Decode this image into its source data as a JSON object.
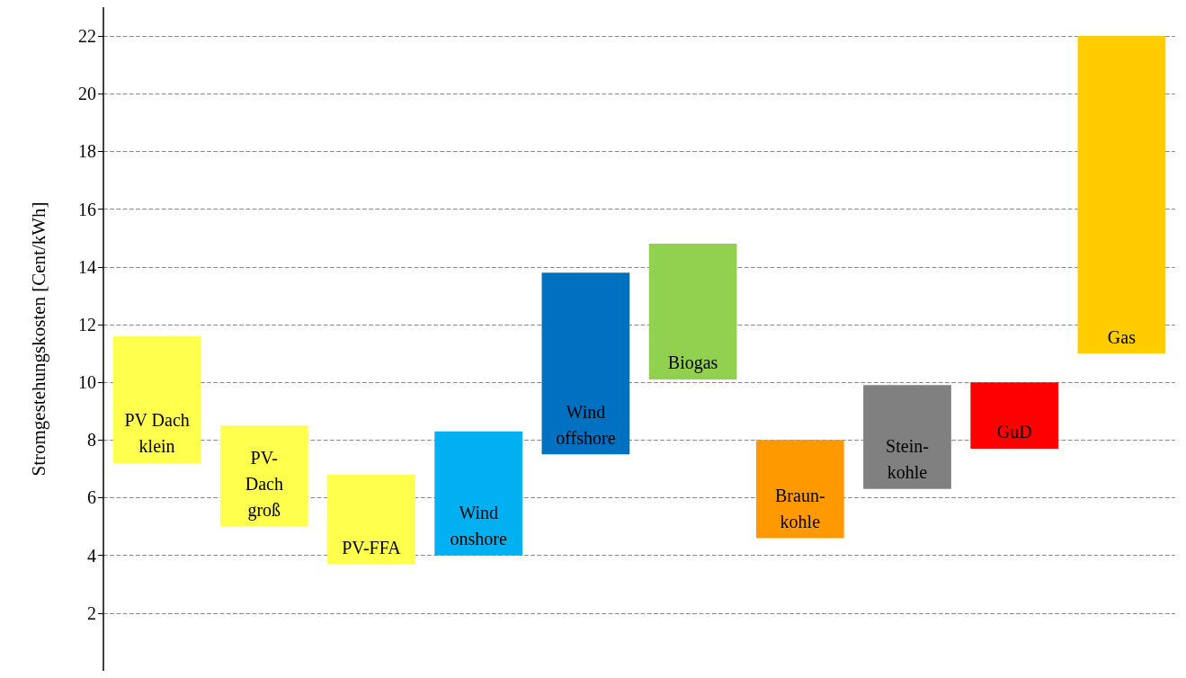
{
  "chart_data": {
    "type": "bar",
    "ylabel": "Stromgestehungskosten [Cent/kWh]",
    "categories": [
      "PV Dach\nklein",
      "PV-\nDach\ngroß",
      "PV-FFA",
      "Wind\nonshore",
      "Wind\noffshore",
      "Biogas",
      "Braun-\nkohle",
      "Stein-\nkohle",
      "GuD",
      "Gas"
    ],
    "base": [
      7.2,
      5.0,
      3.7,
      4.0,
      7.5,
      10.1,
      4.6,
      6.3,
      7.7,
      11.0
    ],
    "values": [
      4.4,
      3.5,
      3.1,
      4.3,
      6.3,
      4.7,
      3.4,
      3.6,
      2.3,
      11.0
    ],
    "colors": [
      "#ffff4d",
      "#ffff4d",
      "#ffff4d",
      "#00b0f0",
      "#0070c0",
      "#92d050",
      "#ff9900",
      "#808080",
      "#ff0000",
      "#ffcc00"
    ],
    "ylim": [
      0,
      23
    ],
    "yticks": [
      2,
      4,
      6,
      8,
      10,
      12,
      14,
      16,
      18,
      20,
      22
    ],
    "grid": "y",
    "tick_labels": "y"
  }
}
